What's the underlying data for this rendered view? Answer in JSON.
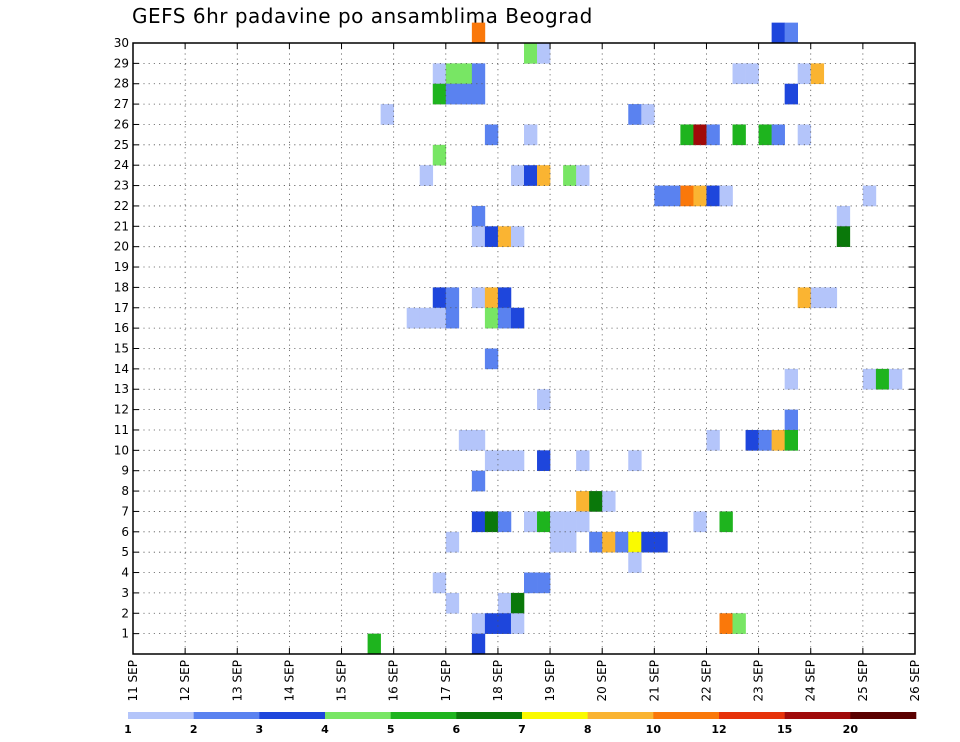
{
  "chart_data": {
    "type": "heatmap",
    "title": "GEFS 6hr padavine po ansamblima Beograd",
    "xlabel": "",
    "ylabel": "",
    "x_ticks": [
      "11 SEP",
      "12 SEP",
      "13 SEP",
      "14 SEP",
      "15 SEP",
      "16 SEP",
      "17 SEP",
      "18 SEP",
      "19 SEP",
      "20 SEP",
      "21 SEP",
      "22 SEP",
      "23 SEP",
      "24 SEP",
      "25 SEP",
      "26 SEP"
    ],
    "xlim": [
      0,
      60
    ],
    "y_ticks": [
      1,
      2,
      3,
      4,
      5,
      6,
      7,
      8,
      9,
      10,
      11,
      12,
      13,
      14,
      15,
      16,
      17,
      18,
      19,
      20,
      21,
      22,
      23,
      24,
      25,
      26,
      27,
      28,
      29,
      30
    ],
    "ylim": [
      0,
      30
    ],
    "grid": true,
    "legend": {
      "position": "bottom",
      "labels": [
        "1",
        "2",
        "3",
        "4",
        "5",
        "6",
        "7",
        "8",
        "10",
        "12",
        "15",
        "20"
      ],
      "colors": [
        "#b4c5fa",
        "#5a82f0",
        "#1e46dc",
        "#78e664",
        "#1eb41e",
        "#0a780a",
        "#fafa00",
        "#fab432",
        "#fa780a",
        "#e6320a",
        "#a00a0a",
        "#5a0000"
      ]
    },
    "cells": [
      [
        30,
        26,
        8
      ],
      [
        30,
        49,
        2
      ],
      [
        30,
        50,
        1
      ],
      [
        29,
        30,
        3
      ],
      [
        29,
        31,
        0
      ],
      [
        28,
        23,
        0
      ],
      [
        28,
        24,
        3
      ],
      [
        28,
        25,
        3
      ],
      [
        28,
        26,
        1
      ],
      [
        28,
        46,
        0
      ],
      [
        28,
        47,
        0
      ],
      [
        28,
        51,
        0
      ],
      [
        28,
        52,
        7
      ],
      [
        27,
        23,
        4
      ],
      [
        27,
        24,
        1
      ],
      [
        27,
        25,
        1
      ],
      [
        27,
        26,
        1
      ],
      [
        27,
        50,
        2
      ],
      [
        26,
        19,
        0
      ],
      [
        26,
        38,
        1
      ],
      [
        26,
        39,
        0
      ],
      [
        25,
        27,
        1
      ],
      [
        25,
        30,
        0
      ],
      [
        25,
        42,
        4
      ],
      [
        25,
        43,
        10
      ],
      [
        25,
        44,
        1
      ],
      [
        25,
        46,
        4
      ],
      [
        25,
        48,
        4
      ],
      [
        25,
        49,
        1
      ],
      [
        25,
        51,
        0
      ],
      [
        24,
        23,
        3
      ],
      [
        23,
        22,
        0
      ],
      [
        23,
        29,
        0
      ],
      [
        23,
        30,
        2
      ],
      [
        23,
        31,
        7
      ],
      [
        23,
        33,
        3
      ],
      [
        23,
        34,
        0
      ],
      [
        22,
        40,
        1
      ],
      [
        22,
        41,
        1
      ],
      [
        22,
        42,
        8
      ],
      [
        22,
        43,
        7
      ],
      [
        22,
        44,
        2
      ],
      [
        22,
        45,
        0
      ],
      [
        22,
        56,
        0
      ],
      [
        21,
        26,
        1
      ],
      [
        21,
        54,
        0
      ],
      [
        20,
        26,
        0
      ],
      [
        20,
        27,
        2
      ],
      [
        20,
        28,
        7
      ],
      [
        20,
        29,
        0
      ],
      [
        20,
        54,
        5
      ],
      [
        17,
        23,
        2
      ],
      [
        17,
        24,
        1
      ],
      [
        17,
        26,
        0
      ],
      [
        17,
        27,
        7
      ],
      [
        17,
        28,
        2
      ],
      [
        17,
        51,
        7
      ],
      [
        17,
        52,
        0
      ],
      [
        17,
        53,
        0
      ],
      [
        16,
        21,
        0
      ],
      [
        16,
        22,
        0
      ],
      [
        16,
        23,
        0
      ],
      [
        16,
        24,
        1
      ],
      [
        16,
        27,
        3
      ],
      [
        16,
        28,
        1
      ],
      [
        16,
        29,
        2
      ],
      [
        14,
        27,
        1
      ],
      [
        13,
        50,
        0
      ],
      [
        13,
        56,
        0
      ],
      [
        13,
        57,
        4
      ],
      [
        13,
        58,
        0
      ],
      [
        12,
        31,
        0
      ],
      [
        11,
        50,
        1
      ],
      [
        10,
        25,
        0
      ],
      [
        10,
        26,
        0
      ],
      [
        10,
        44,
        0
      ],
      [
        10,
        47,
        2
      ],
      [
        10,
        48,
        1
      ],
      [
        10,
        49,
        7
      ],
      [
        10,
        50,
        4
      ],
      [
        9,
        27,
        0
      ],
      [
        9,
        28,
        0
      ],
      [
        9,
        29,
        0
      ],
      [
        9,
        31,
        2
      ],
      [
        9,
        34,
        0
      ],
      [
        9,
        38,
        0
      ],
      [
        8,
        26,
        1
      ],
      [
        7,
        34,
        7
      ],
      [
        7,
        35,
        5
      ],
      [
        7,
        36,
        0
      ],
      [
        6,
        26,
        2
      ],
      [
        6,
        27,
        5
      ],
      [
        6,
        28,
        1
      ],
      [
        6,
        30,
        0
      ],
      [
        6,
        31,
        4
      ],
      [
        6,
        32,
        0
      ],
      [
        6,
        33,
        0
      ],
      [
        6,
        34,
        0
      ],
      [
        6,
        43,
        0
      ],
      [
        6,
        45,
        4
      ],
      [
        5,
        24,
        0
      ],
      [
        5,
        32,
        0
      ],
      [
        5,
        33,
        0
      ],
      [
        5,
        35,
        1
      ],
      [
        5,
        36,
        7
      ],
      [
        5,
        37,
        1
      ],
      [
        5,
        38,
        6
      ],
      [
        5,
        39,
        2
      ],
      [
        5,
        40,
        2
      ],
      [
        4,
        38,
        0
      ],
      [
        3,
        23,
        0
      ],
      [
        3,
        30,
        1
      ],
      [
        3,
        31,
        1
      ],
      [
        2,
        24,
        0
      ],
      [
        2,
        28,
        0
      ],
      [
        2,
        29,
        5
      ],
      [
        1,
        26,
        0
      ],
      [
        1,
        27,
        2
      ],
      [
        1,
        28,
        2
      ],
      [
        1,
        29,
        0
      ],
      [
        1,
        45,
        8
      ],
      [
        1,
        46,
        3
      ],
      [
        0,
        18,
        4
      ],
      [
        0,
        26,
        2
      ]
    ]
  }
}
